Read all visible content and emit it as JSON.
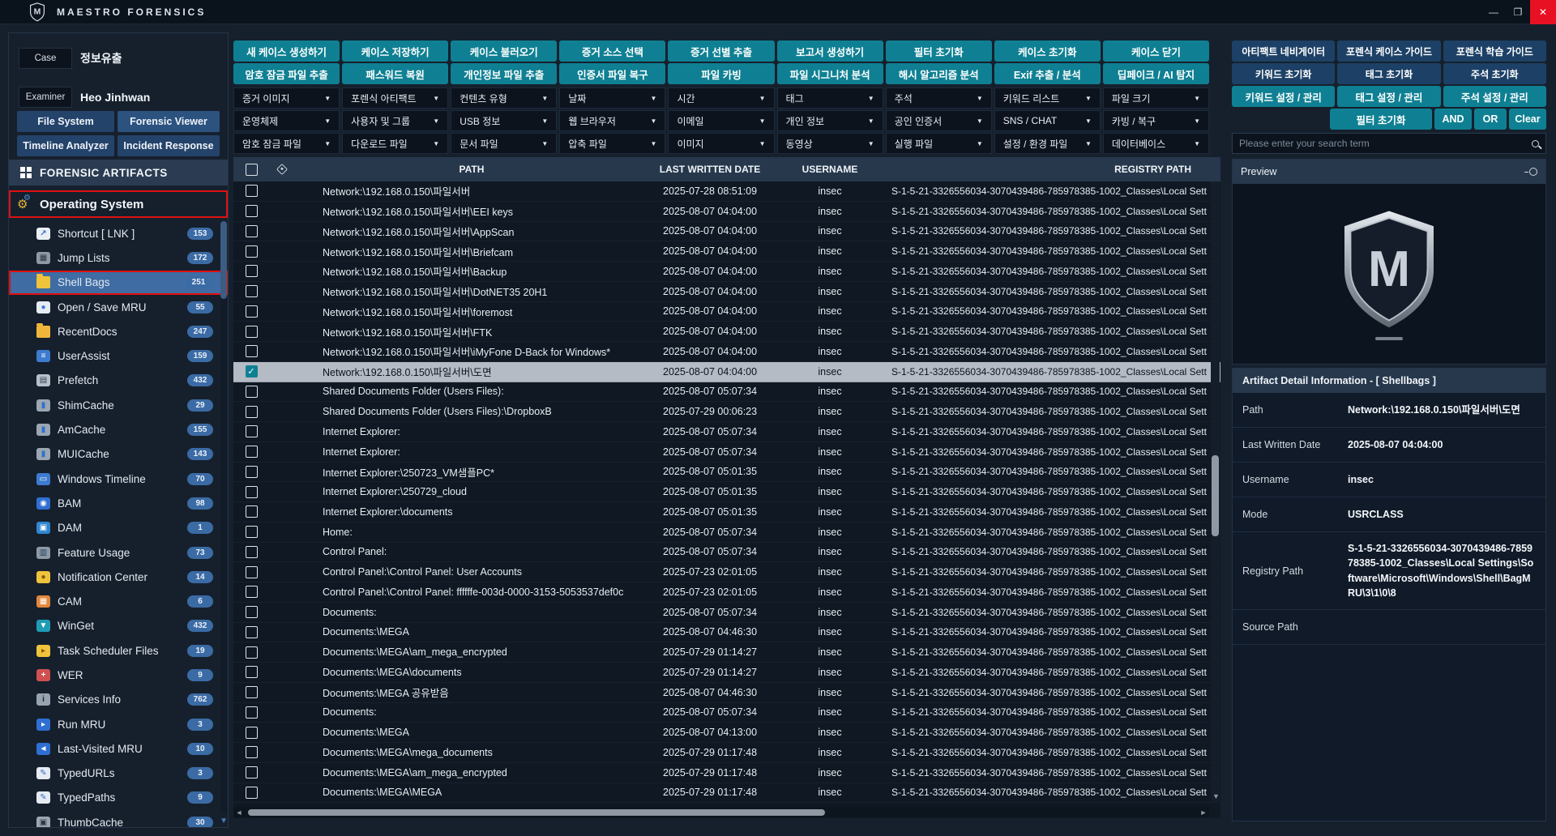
{
  "titlebar": {
    "app_name": "MAESTRO FORENSICS",
    "minimize": "—",
    "maximize": "❐",
    "close": "✕"
  },
  "case_panel": {
    "case_label": "Case",
    "case_value": "정보유출",
    "examiner_label": "Examiner",
    "examiner_value": "Heo Jinhwan",
    "nav_buttons": [
      "File System",
      "Forensic Viewer",
      "Timeline Analyzer",
      "Incident Response"
    ]
  },
  "artifacts": {
    "header": "FORENSIC ARTIFACTS",
    "category": "Operating System",
    "items": [
      {
        "label": "Shortcut [ LNK ]",
        "count": "153",
        "icon": "shortcut-icon",
        "bg": "#e9eef4",
        "glyph": "↗",
        "fg": "#2f6fd2"
      },
      {
        "label": "Jump Lists",
        "count": "172",
        "icon": "jump-lists-icon",
        "bg": "#8e99a6",
        "glyph": "▦",
        "fg": "#2c3540"
      },
      {
        "label": "Shell Bags",
        "count": "251",
        "icon": "folder-icon",
        "bg": "#f0c33c",
        "glyph": "▱",
        "fg": "#3a66c4",
        "folder": true,
        "selected": true
      },
      {
        "label": "Open / Save MRU",
        "count": "55",
        "icon": "file-icon",
        "bg": "#e6ebf1",
        "glyph": "●",
        "fg": "#3a7bd5"
      },
      {
        "label": "RecentDocs",
        "count": "247",
        "icon": "recent-docs-icon",
        "bg": "#f0b63c",
        "glyph": "◷",
        "fg": "#1d5fb8",
        "folder": true
      },
      {
        "label": "UserAssist",
        "count": "159",
        "icon": "list-icon",
        "bg": "#3d7bd0",
        "glyph": "≡",
        "fg": "#ffffff"
      },
      {
        "label": "Prefetch",
        "count": "432",
        "icon": "exe-file-icon",
        "bg": "#b7c1cc",
        "glyph": "▤",
        "fg": "#34404d"
      },
      {
        "label": "ShimCache",
        "count": "29",
        "icon": "database-icon",
        "bg": "#9aa6b2",
        "glyph": "▮",
        "fg": "#2e6fd0"
      },
      {
        "label": "AmCache",
        "count": "155",
        "icon": "database-icon",
        "bg": "#9aa6b2",
        "glyph": "▮",
        "fg": "#2e6fd0"
      },
      {
        "label": "MUICache",
        "count": "143",
        "icon": "database-icon",
        "bg": "#9aa6b2",
        "glyph": "▮",
        "fg": "#2e6fd0"
      },
      {
        "label": "Windows Timeline",
        "count": "70",
        "icon": "timeline-icon",
        "bg": "#3d7bd0",
        "glyph": "▭",
        "fg": "#ffffff"
      },
      {
        "label": "BAM",
        "count": "98",
        "icon": "bam-icon",
        "bg": "#2f6fd2",
        "glyph": "◉",
        "fg": "#ffffff"
      },
      {
        "label": "DAM",
        "count": "1",
        "icon": "dam-icon",
        "bg": "#2f86d2",
        "glyph": "▣",
        "fg": "#ffffff"
      },
      {
        "label": "Feature Usage",
        "count": "73",
        "icon": "chart-icon",
        "bg": "#8e99a6",
        "glyph": "▥",
        "fg": "#23415f"
      },
      {
        "label": "Notification Center",
        "count": "14",
        "icon": "bell-icon",
        "bg": "#f0c33c",
        "glyph": "●",
        "fg": "#7c5a10"
      },
      {
        "label": "CAM",
        "count": "6",
        "icon": "cam-icon",
        "bg": "#e2863c",
        "glyph": "▦",
        "fg": "#ffffff"
      },
      {
        "label": "WinGet",
        "count": "432",
        "icon": "winget-icon",
        "bg": "#1f9bb5",
        "glyph": "▼",
        "fg": "#ffffff"
      },
      {
        "label": "Task Scheduler Files",
        "count": "19",
        "icon": "task-scheduler-icon",
        "bg": "#f0c33c",
        "glyph": "▸",
        "fg": "#8a5a00"
      },
      {
        "label": "WER",
        "count": "9",
        "icon": "wer-icon",
        "bg": "#d05050",
        "glyph": "+",
        "fg": "#ffffff"
      },
      {
        "label": "Services Info",
        "count": "762",
        "icon": "services-info-icon",
        "bg": "#97a3b0",
        "glyph": "i",
        "fg": "#18222e"
      },
      {
        "label": "Run MRU",
        "count": "3",
        "icon": "run-mru-icon",
        "bg": "#2f6fd2",
        "glyph": "▸",
        "fg": "#ffffff"
      },
      {
        "label": "Last-Visited MRU",
        "count": "10",
        "icon": "last-visited-mru-icon",
        "bg": "#2f6fd2",
        "glyph": "◄",
        "fg": "#ffffff"
      },
      {
        "label": "TypedURLs",
        "count": "3",
        "icon": "pencil-icon",
        "bg": "#e6ebf1",
        "glyph": "✎",
        "fg": "#2f6fd2"
      },
      {
        "label": "TypedPaths",
        "count": "9",
        "icon": "pencil-icon",
        "bg": "#e6ebf1",
        "glyph": "✎",
        "fg": "#2f6fd2"
      },
      {
        "label": "ThumbCache",
        "count": "30",
        "icon": "thumbcache-icon",
        "bg": "#9aa6b2",
        "glyph": "▣",
        "fg": "#2c3540"
      }
    ]
  },
  "toolbar": {
    "row1": [
      "새 케이스 생성하기",
      "케이스 저장하기",
      "케이스 불러오기",
      "증거 소스 선택",
      "증거 선별 추출",
      "보고서 생성하기",
      "필터 초기화",
      "케이스 초기화",
      "케이스 닫기"
    ],
    "row2": [
      "암호 잠금 파일 추출",
      "패스워드 복원",
      "개인정보 파일 추출",
      "인증서 파일 복구",
      "파일 카빙",
      "파일 시그니처 분석",
      "해시 알고리즘 분석",
      "Exif 추출 / 분석",
      "딥페이크 / AI 탐지"
    ]
  },
  "filters": {
    "row1": [
      "증거 이미지",
      "포렌식 아티팩트",
      "컨텐츠 유형",
      "날짜",
      "시간",
      "태그",
      "주석",
      "키워드 리스트",
      "파일 크기"
    ],
    "row2": [
      "운영체제",
      "사용자 및 그룹",
      "USB 정보",
      "웹 브라우저",
      "이메일",
      "개인 정보",
      "공인 인증서",
      "SNS / CHAT",
      "카빙 / 복구"
    ],
    "row3": [
      "암호 잠금 파일",
      "다운로드 파일",
      "문서 파일",
      "압축 파일",
      "이미지",
      "동영상",
      "실행 파일",
      "설정 / 환경 파일",
      "데이터베이스"
    ]
  },
  "right_toolbar": {
    "row1": [
      "아티팩트 네비게이터",
      "포렌식 케이스 가이드",
      "포렌식 학습 가이드"
    ],
    "row2": [
      "키워드 초기화",
      "태그 초기화",
      "주석 초기화"
    ],
    "row3": [
      "키워드 설정 / 관리",
      "태그 설정 / 관리",
      "주석 설정 / 관리"
    ],
    "row4": {
      "filter_reset": "필터 초기화",
      "and": "AND",
      "or": "OR",
      "clear": "Clear"
    }
  },
  "search": {
    "placeholder": "Please enter your search term"
  },
  "preview": {
    "title": "Preview"
  },
  "detail": {
    "title": "Artifact Detail Information  -  [ Shellbags ]",
    "rows": [
      {
        "label": "Path",
        "value": "Network:\\192.168.0.150\\파일서버\\도면"
      },
      {
        "label": "Last Written Date",
        "value": "2025-08-07 04:04:00"
      },
      {
        "label": "Username",
        "value": "insec"
      },
      {
        "label": "Mode",
        "value": "USRCLASS"
      },
      {
        "label": "Registry Path",
        "value": "S-1-5-21-3326556034-3070439486-785978385-1002_Classes\\Local Settings\\Software\\Microsoft\\Windows\\Shell\\BagMRU\\3\\1\\0\\8",
        "tall": true
      },
      {
        "label": "Source Path",
        "value": ""
      }
    ]
  },
  "table": {
    "headers": [
      "PATH",
      "LAST WRITTEN DATE",
      "USERNAME",
      "REGISTRY PATH"
    ],
    "registry_path_common": "S-1-5-21-3326556034-3070439486-785978385-1002_Classes\\Local Sett",
    "rows": [
      {
        "path": "Network:\\192.168.0.150\\파일서버",
        "date": "2025-07-28 08:51:09",
        "user": "insec"
      },
      {
        "path": "Network:\\192.168.0.150\\파일서버\\EEI keys",
        "date": "2025-08-07 04:04:00",
        "user": "insec"
      },
      {
        "path": "Network:\\192.168.0.150\\파일서버\\AppScan",
        "date": "2025-08-07 04:04:00",
        "user": "insec"
      },
      {
        "path": "Network:\\192.168.0.150\\파일서버\\Briefcam",
        "date": "2025-08-07 04:04:00",
        "user": "insec"
      },
      {
        "path": "Network:\\192.168.0.150\\파일서버\\Backup",
        "date": "2025-08-07 04:04:00",
        "user": "insec"
      },
      {
        "path": "Network:\\192.168.0.150\\파일서버\\DotNET35 20H1",
        "date": "2025-08-07 04:04:00",
        "user": "insec"
      },
      {
        "path": "Network:\\192.168.0.150\\파일서버\\foremost",
        "date": "2025-08-07 04:04:00",
        "user": "insec"
      },
      {
        "path": "Network:\\192.168.0.150\\파일서버\\FTK",
        "date": "2025-08-07 04:04:00",
        "user": "insec"
      },
      {
        "path": "Network:\\192.168.0.150\\파일서버\\iMyFone D-Back for Windows*",
        "date": "2025-08-07 04:04:00",
        "user": "insec"
      },
      {
        "path": "Network:\\192.168.0.150\\파일서버\\도면",
        "date": "2025-08-07 04:04:00",
        "user": "insec",
        "checked": true,
        "selected": true
      },
      {
        "path": "Shared Documents Folder (Users Files):",
        "date": "2025-08-07 05:07:34",
        "user": "insec"
      },
      {
        "path": "Shared Documents Folder (Users Files):\\DropboxB",
        "date": "2025-07-29 00:06:23",
        "user": "insec"
      },
      {
        "path": "Internet Explorer:",
        "date": "2025-08-07 05:07:34",
        "user": "insec"
      },
      {
        "path": "Internet Explorer:",
        "date": "2025-08-07 05:07:34",
        "user": "insec"
      },
      {
        "path": "Internet Explorer:\\250723_VM샘플PC*",
        "date": "2025-08-07 05:01:35",
        "user": "insec"
      },
      {
        "path": "Internet Explorer:\\250729_cloud",
        "date": "2025-08-07 05:01:35",
        "user": "insec"
      },
      {
        "path": "Internet Explorer:\\documents",
        "date": "2025-08-07 05:01:35",
        "user": "insec"
      },
      {
        "path": "Home:",
        "date": "2025-08-07 05:07:34",
        "user": "insec"
      },
      {
        "path": "Control Panel:",
        "date": "2025-08-07 05:07:34",
        "user": "insec"
      },
      {
        "path": "Control Panel:\\Control Panel: User Accounts",
        "date": "2025-07-23 02:01:05",
        "user": "insec"
      },
      {
        "path": "Control Panel:\\Control Panel: ffffffe-003d-0000-3153-5053537def0c",
        "date": "2025-07-23 02:01:05",
        "user": "insec"
      },
      {
        "path": "Documents:",
        "date": "2025-08-07 05:07:34",
        "user": "insec"
      },
      {
        "path": "Documents:\\MEGA",
        "date": "2025-08-07 04:46:30",
        "user": "insec"
      },
      {
        "path": "Documents:\\MEGA\\am_mega_encrypted",
        "date": "2025-07-29 01:14:27",
        "user": "insec"
      },
      {
        "path": "Documents:\\MEGA\\documents",
        "date": "2025-07-29 01:14:27",
        "user": "insec"
      },
      {
        "path": "Documents:\\MEGA 공유받음",
        "date": "2025-08-07 04:46:30",
        "user": "insec"
      },
      {
        "path": "Documents:",
        "date": "2025-08-07 05:07:34",
        "user": "insec"
      },
      {
        "path": "Documents:\\MEGA",
        "date": "2025-08-07 04:13:00",
        "user": "insec"
      },
      {
        "path": "Documents:\\MEGA\\mega_documents",
        "date": "2025-07-29 01:17:48",
        "user": "insec"
      },
      {
        "path": "Documents:\\MEGA\\am_mega_encrypted",
        "date": "2025-07-29 01:17:48",
        "user": "insec"
      },
      {
        "path": "Documents:\\MEGA\\MEGA",
        "date": "2025-07-29 01:17:48",
        "user": "insec"
      }
    ]
  }
}
